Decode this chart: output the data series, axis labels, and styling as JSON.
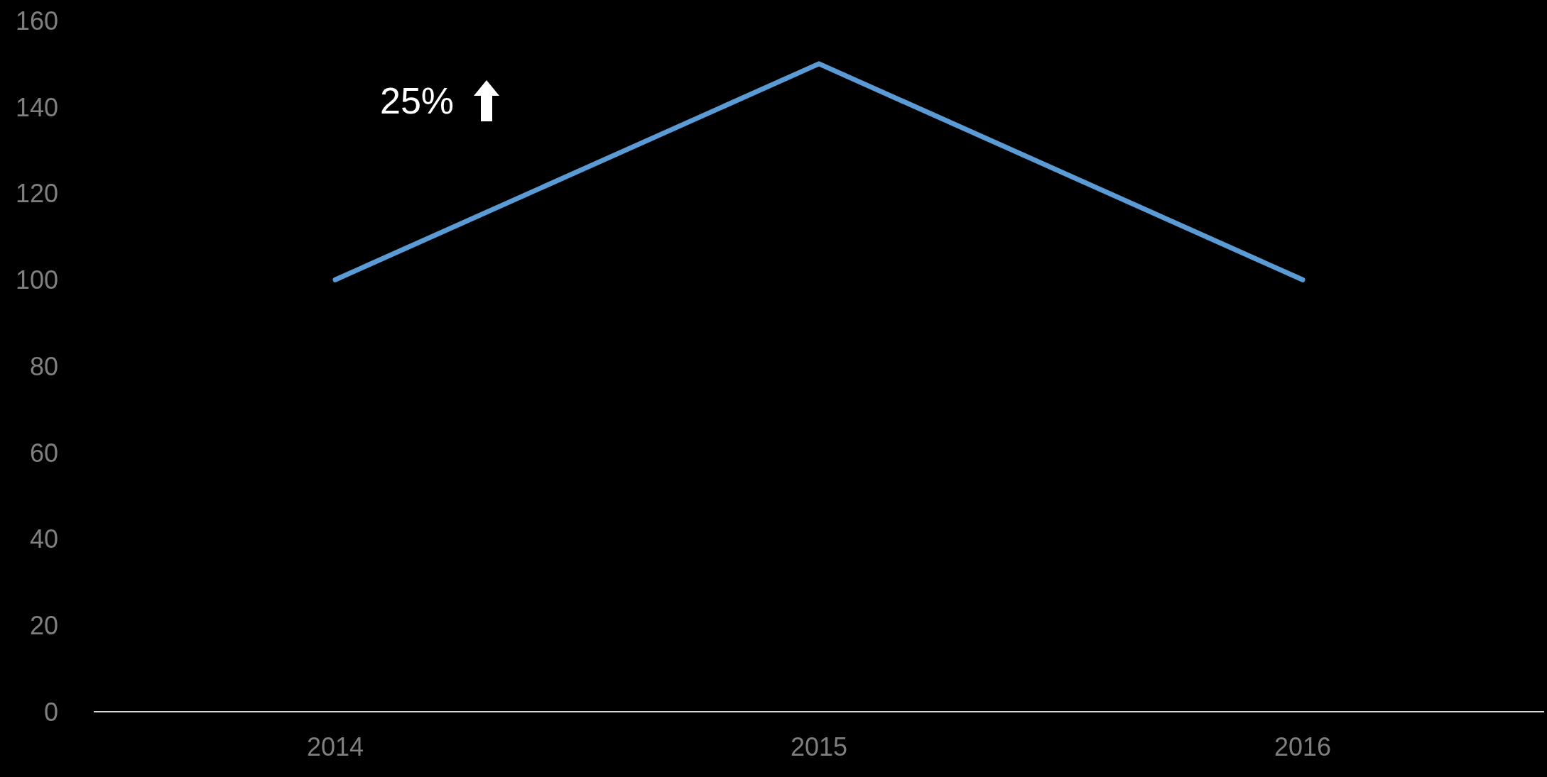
{
  "chart_data": {
    "type": "line",
    "categories": [
      "2014",
      "2015",
      "2016"
    ],
    "series": [
      {
        "color": "#5b9bd5",
        "values": [
          100,
          150,
          100
        ]
      }
    ],
    "ylim": [
      0,
      160
    ],
    "yticks": [
      0,
      20,
      40,
      60,
      80,
      100,
      120,
      140,
      160
    ],
    "marker": "none",
    "annotations": [
      "25%"
    ]
  }
}
